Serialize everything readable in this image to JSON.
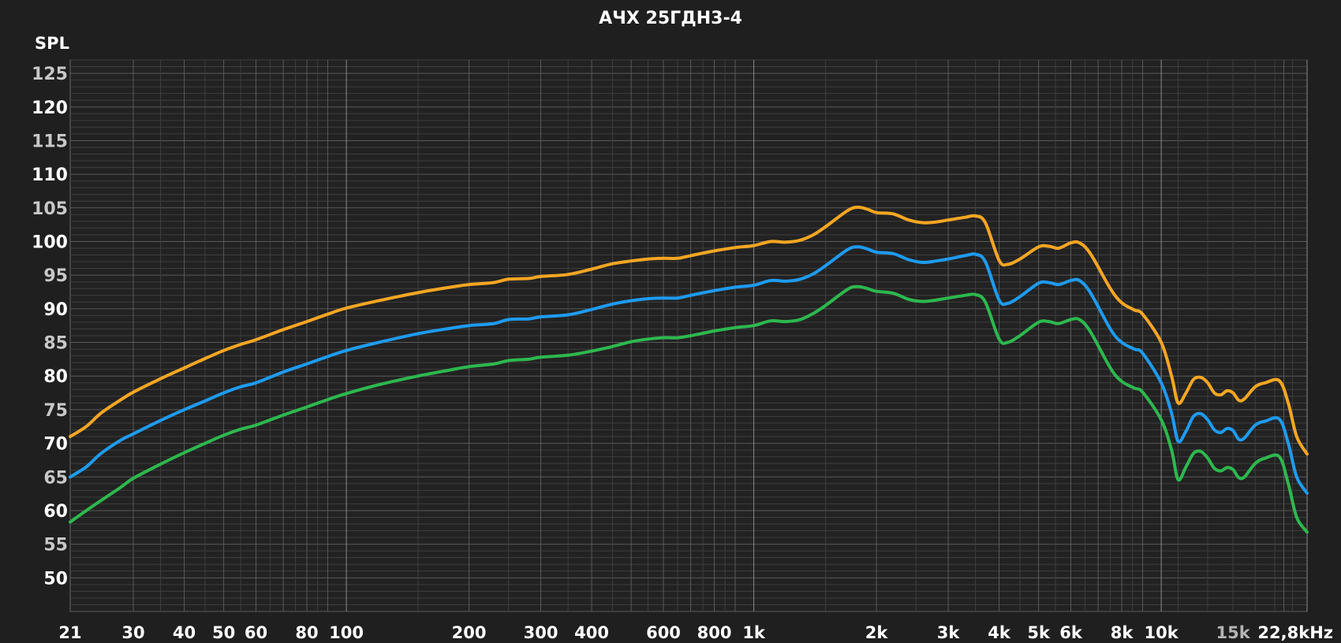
{
  "chart_data": {
    "type": "line",
    "title": "АЧХ 25ГДН3-4",
    "ylabel": "SPL",
    "xlabel": "",
    "x_scale": "log",
    "xlim": [
      21,
      22800
    ],
    "ylim": [
      45,
      127
    ],
    "grid": true,
    "y_ticks": [
      {
        "value": 125,
        "label": "125",
        "color": "#c8c8c8"
      },
      {
        "value": 120,
        "label": "120",
        "color": "#ffffff"
      },
      {
        "value": 115,
        "label": "115",
        "color": "#c8c8c8"
      },
      {
        "value": 110,
        "label": "110",
        "color": "#ffffff"
      },
      {
        "value": 105,
        "label": "105",
        "color": "#c8c8c8"
      },
      {
        "value": 100,
        "label": "100",
        "color": "#ffffff"
      },
      {
        "value": 95,
        "label": "95",
        "color": "#c8c8c8"
      },
      {
        "value": 90,
        "label": "90",
        "color": "#ffffff"
      },
      {
        "value": 85,
        "label": "85",
        "color": "#c8c8c8"
      },
      {
        "value": 80,
        "label": "80",
        "color": "#ffffff"
      },
      {
        "value": 75,
        "label": "75",
        "color": "#c8c8c8"
      },
      {
        "value": 70,
        "label": "70",
        "color": "#ffffff"
      },
      {
        "value": 65,
        "label": "65",
        "color": "#c8c8c8"
      },
      {
        "value": 60,
        "label": "60",
        "color": "#ffffff"
      },
      {
        "value": 55,
        "label": "55",
        "color": "#c8c8c8"
      },
      {
        "value": 50,
        "label": "50",
        "color": "#ffffff"
      }
    ],
    "x_ticks": [
      {
        "value": 21,
        "label": "21",
        "color": "#ffffff"
      },
      {
        "value": 30,
        "label": "30",
        "color": "#ffffff"
      },
      {
        "value": 40,
        "label": "40",
        "color": "#ffffff"
      },
      {
        "value": 50,
        "label": "50",
        "color": "#ffffff"
      },
      {
        "value": 60,
        "label": "60",
        "color": "#ffffff"
      },
      {
        "value": 80,
        "label": "80",
        "color": "#ffffff"
      },
      {
        "value": 100,
        "label": "100",
        "color": "#ffffff"
      },
      {
        "value": 200,
        "label": "200",
        "color": "#ffffff"
      },
      {
        "value": 300,
        "label": "300",
        "color": "#ffffff"
      },
      {
        "value": 400,
        "label": "400",
        "color": "#ffffff"
      },
      {
        "value": 600,
        "label": "600",
        "color": "#ffffff"
      },
      {
        "value": 800,
        "label": "800",
        "color": "#ffffff"
      },
      {
        "value": 1000,
        "label": "1k",
        "color": "#ffffff"
      },
      {
        "value": 2000,
        "label": "2k",
        "color": "#ffffff"
      },
      {
        "value": 3000,
        "label": "3k",
        "color": "#ffffff"
      },
      {
        "value": 4000,
        "label": "4k",
        "color": "#ffffff"
      },
      {
        "value": 5000,
        "label": "5k",
        "color": "#ffffff"
      },
      {
        "value": 6000,
        "label": "6k",
        "color": "#ffffff"
      },
      {
        "value": 8000,
        "label": "8k",
        "color": "#ffffff"
      },
      {
        "value": 10000,
        "label": "10k",
        "color": "#ffffff"
      },
      {
        "value": 15000,
        "label": "15k",
        "color": "#b4b4b4"
      },
      {
        "value": 22800,
        "label": "22,8kHz",
        "color": "#ffffff"
      }
    ],
    "series": [
      {
        "name": "orange",
        "color": "#f5a623",
        "points": [
          [
            21,
            71
          ],
          [
            23,
            72.5
          ],
          [
            25,
            74.5
          ],
          [
            28,
            76.5
          ],
          [
            30,
            77.6
          ],
          [
            35,
            79.6
          ],
          [
            40,
            81.2
          ],
          [
            45,
            82.6
          ],
          [
            50,
            83.8
          ],
          [
            55,
            84.7
          ],
          [
            60,
            85.4
          ],
          [
            70,
            86.9
          ],
          [
            80,
            88.1
          ],
          [
            90,
            89.2
          ],
          [
            100,
            90.1
          ],
          [
            120,
            91.2
          ],
          [
            150,
            92.4
          ],
          [
            180,
            93.2
          ],
          [
            200,
            93.6
          ],
          [
            230,
            93.9
          ],
          [
            250,
            94.4
          ],
          [
            280,
            94.5
          ],
          [
            300,
            94.8
          ],
          [
            350,
            95.1
          ],
          [
            400,
            95.9
          ],
          [
            450,
            96.7
          ],
          [
            500,
            97.1
          ],
          [
            550,
            97.4
          ],
          [
            600,
            97.5
          ],
          [
            650,
            97.5
          ],
          [
            700,
            97.9
          ],
          [
            800,
            98.6
          ],
          [
            900,
            99.1
          ],
          [
            1000,
            99.4
          ],
          [
            1100,
            100.0
          ],
          [
            1200,
            99.9
          ],
          [
            1300,
            100.2
          ],
          [
            1400,
            101.0
          ],
          [
            1500,
            102.2
          ],
          [
            1700,
            104.6
          ],
          [
            1800,
            105.1
          ],
          [
            1900,
            104.8
          ],
          [
            2000,
            104.3
          ],
          [
            2200,
            104.1
          ],
          [
            2400,
            103.2
          ],
          [
            2600,
            102.8
          ],
          [
            2800,
            102.9
          ],
          [
            3000,
            103.2
          ],
          [
            3300,
            103.6
          ],
          [
            3500,
            103.8
          ],
          [
            3700,
            102.8
          ],
          [
            4000,
            97.2
          ],
          [
            4200,
            96.6
          ],
          [
            4500,
            97.4
          ],
          [
            5000,
            99.2
          ],
          [
            5300,
            99.3
          ],
          [
            5600,
            99.0
          ],
          [
            6000,
            99.8
          ],
          [
            6300,
            99.8
          ],
          [
            6700,
            98.2
          ],
          [
            7500,
            93.0
          ],
          [
            8000,
            90.9
          ],
          [
            8600,
            89.8
          ],
          [
            9000,
            89.2
          ],
          [
            10000,
            85.0
          ],
          [
            10600,
            80.0
          ],
          [
            11000,
            76.0
          ],
          [
            11500,
            77.5
          ],
          [
            12000,
            79.5
          ],
          [
            12500,
            79.8
          ],
          [
            13000,
            79.0
          ],
          [
            13500,
            77.5
          ],
          [
            14000,
            77.2
          ],
          [
            14500,
            77.8
          ],
          [
            15000,
            77.5
          ],
          [
            15500,
            76.4
          ],
          [
            16000,
            76.6
          ],
          [
            17000,
            78.4
          ],
          [
            18000,
            79.0
          ],
          [
            19500,
            79.3
          ],
          [
            20500,
            76.0
          ],
          [
            21500,
            71.0
          ],
          [
            22800,
            68.4
          ]
        ]
      },
      {
        "name": "blue",
        "color": "#1e9bf0",
        "points": [
          [
            21,
            65
          ],
          [
            23,
            66.5
          ],
          [
            25,
            68.5
          ],
          [
            28,
            70.5
          ],
          [
            30,
            71.4
          ],
          [
            35,
            73.4
          ],
          [
            40,
            75.0
          ],
          [
            45,
            76.3
          ],
          [
            50,
            77.5
          ],
          [
            55,
            78.4
          ],
          [
            60,
            79.0
          ],
          [
            70,
            80.6
          ],
          [
            80,
            81.8
          ],
          [
            90,
            82.9
          ],
          [
            100,
            83.8
          ],
          [
            120,
            85.0
          ],
          [
            150,
            86.3
          ],
          [
            180,
            87.1
          ],
          [
            200,
            87.5
          ],
          [
            230,
            87.8
          ],
          [
            250,
            88.4
          ],
          [
            280,
            88.5
          ],
          [
            300,
            88.8
          ],
          [
            350,
            89.1
          ],
          [
            400,
            89.9
          ],
          [
            450,
            90.7
          ],
          [
            500,
            91.2
          ],
          [
            550,
            91.5
          ],
          [
            600,
            91.6
          ],
          [
            650,
            91.6
          ],
          [
            700,
            92.0
          ],
          [
            800,
            92.7
          ],
          [
            900,
            93.2
          ],
          [
            1000,
            93.5
          ],
          [
            1100,
            94.2
          ],
          [
            1200,
            94.1
          ],
          [
            1300,
            94.4
          ],
          [
            1400,
            95.2
          ],
          [
            1500,
            96.4
          ],
          [
            1700,
            98.8
          ],
          [
            1800,
            99.2
          ],
          [
            1900,
            98.9
          ],
          [
            2000,
            98.4
          ],
          [
            2200,
            98.2
          ],
          [
            2400,
            97.3
          ],
          [
            2600,
            96.9
          ],
          [
            2800,
            97.1
          ],
          [
            3000,
            97.4
          ],
          [
            3300,
            97.9
          ],
          [
            3500,
            98.1
          ],
          [
            3700,
            97.0
          ],
          [
            4000,
            91.3
          ],
          [
            4200,
            90.8
          ],
          [
            4500,
            91.8
          ],
          [
            5000,
            93.8
          ],
          [
            5300,
            93.9
          ],
          [
            5600,
            93.6
          ],
          [
            6000,
            94.2
          ],
          [
            6300,
            94.2
          ],
          [
            6700,
            92.4
          ],
          [
            7500,
            87.0
          ],
          [
            8000,
            85.0
          ],
          [
            8600,
            84.0
          ],
          [
            9000,
            83.4
          ],
          [
            10000,
            79.0
          ],
          [
            10600,
            74.5
          ],
          [
            11000,
            70.3
          ],
          [
            11500,
            71.8
          ],
          [
            12000,
            74.0
          ],
          [
            12500,
            74.4
          ],
          [
            13000,
            73.5
          ],
          [
            13500,
            72.0
          ],
          [
            14000,
            71.6
          ],
          [
            14500,
            72.2
          ],
          [
            15000,
            71.9
          ],
          [
            15500,
            70.6
          ],
          [
            16000,
            70.8
          ],
          [
            17000,
            72.7
          ],
          [
            18000,
            73.3
          ],
          [
            19500,
            73.6
          ],
          [
            20500,
            70.0
          ],
          [
            21500,
            65.0
          ],
          [
            22800,
            62.6
          ]
        ]
      },
      {
        "name": "green",
        "color": "#2db84e",
        "points": [
          [
            21,
            58.3
          ],
          [
            23,
            60.0
          ],
          [
            25,
            61.5
          ],
          [
            28,
            63.5
          ],
          [
            30,
            64.8
          ],
          [
            35,
            66.9
          ],
          [
            40,
            68.6
          ],
          [
            45,
            70.0
          ],
          [
            50,
            71.2
          ],
          [
            55,
            72.1
          ],
          [
            60,
            72.7
          ],
          [
            70,
            74.2
          ],
          [
            80,
            75.4
          ],
          [
            90,
            76.5
          ],
          [
            100,
            77.4
          ],
          [
            120,
            78.7
          ],
          [
            150,
            80.0
          ],
          [
            180,
            80.9
          ],
          [
            200,
            81.4
          ],
          [
            230,
            81.8
          ],
          [
            250,
            82.3
          ],
          [
            280,
            82.5
          ],
          [
            300,
            82.8
          ],
          [
            350,
            83.1
          ],
          [
            400,
            83.7
          ],
          [
            450,
            84.4
          ],
          [
            500,
            85.1
          ],
          [
            550,
            85.5
          ],
          [
            600,
            85.7
          ],
          [
            650,
            85.7
          ],
          [
            700,
            86.0
          ],
          [
            800,
            86.7
          ],
          [
            900,
            87.2
          ],
          [
            1000,
            87.5
          ],
          [
            1100,
            88.2
          ],
          [
            1200,
            88.1
          ],
          [
            1300,
            88.4
          ],
          [
            1400,
            89.3
          ],
          [
            1500,
            90.5
          ],
          [
            1700,
            92.9
          ],
          [
            1800,
            93.3
          ],
          [
            1900,
            93.0
          ],
          [
            2000,
            92.6
          ],
          [
            2200,
            92.3
          ],
          [
            2400,
            91.4
          ],
          [
            2600,
            91.1
          ],
          [
            2800,
            91.3
          ],
          [
            3000,
            91.6
          ],
          [
            3300,
            92.0
          ],
          [
            3500,
            92.1
          ],
          [
            3700,
            91.0
          ],
          [
            4000,
            85.5
          ],
          [
            4200,
            85.0
          ],
          [
            4500,
            86.0
          ],
          [
            5000,
            88.0
          ],
          [
            5300,
            88.1
          ],
          [
            5600,
            87.8
          ],
          [
            6000,
            88.4
          ],
          [
            6300,
            88.4
          ],
          [
            6700,
            86.6
          ],
          [
            7500,
            81.2
          ],
          [
            8000,
            79.2
          ],
          [
            8600,
            78.2
          ],
          [
            9000,
            77.6
          ],
          [
            10000,
            73.5
          ],
          [
            10600,
            69.0
          ],
          [
            11000,
            64.6
          ],
          [
            11500,
            66.5
          ],
          [
            12000,
            68.5
          ],
          [
            12500,
            68.8
          ],
          [
            13000,
            67.8
          ],
          [
            13500,
            66.3
          ],
          [
            14000,
            65.9
          ],
          [
            14500,
            66.4
          ],
          [
            15000,
            66.1
          ],
          [
            15500,
            64.9
          ],
          [
            16000,
            65.0
          ],
          [
            17000,
            67.0
          ],
          [
            18000,
            67.8
          ],
          [
            19500,
            68.0
          ],
          [
            20500,
            64.0
          ],
          [
            21500,
            59.0
          ],
          [
            22800,
            56.8
          ]
        ]
      }
    ]
  }
}
